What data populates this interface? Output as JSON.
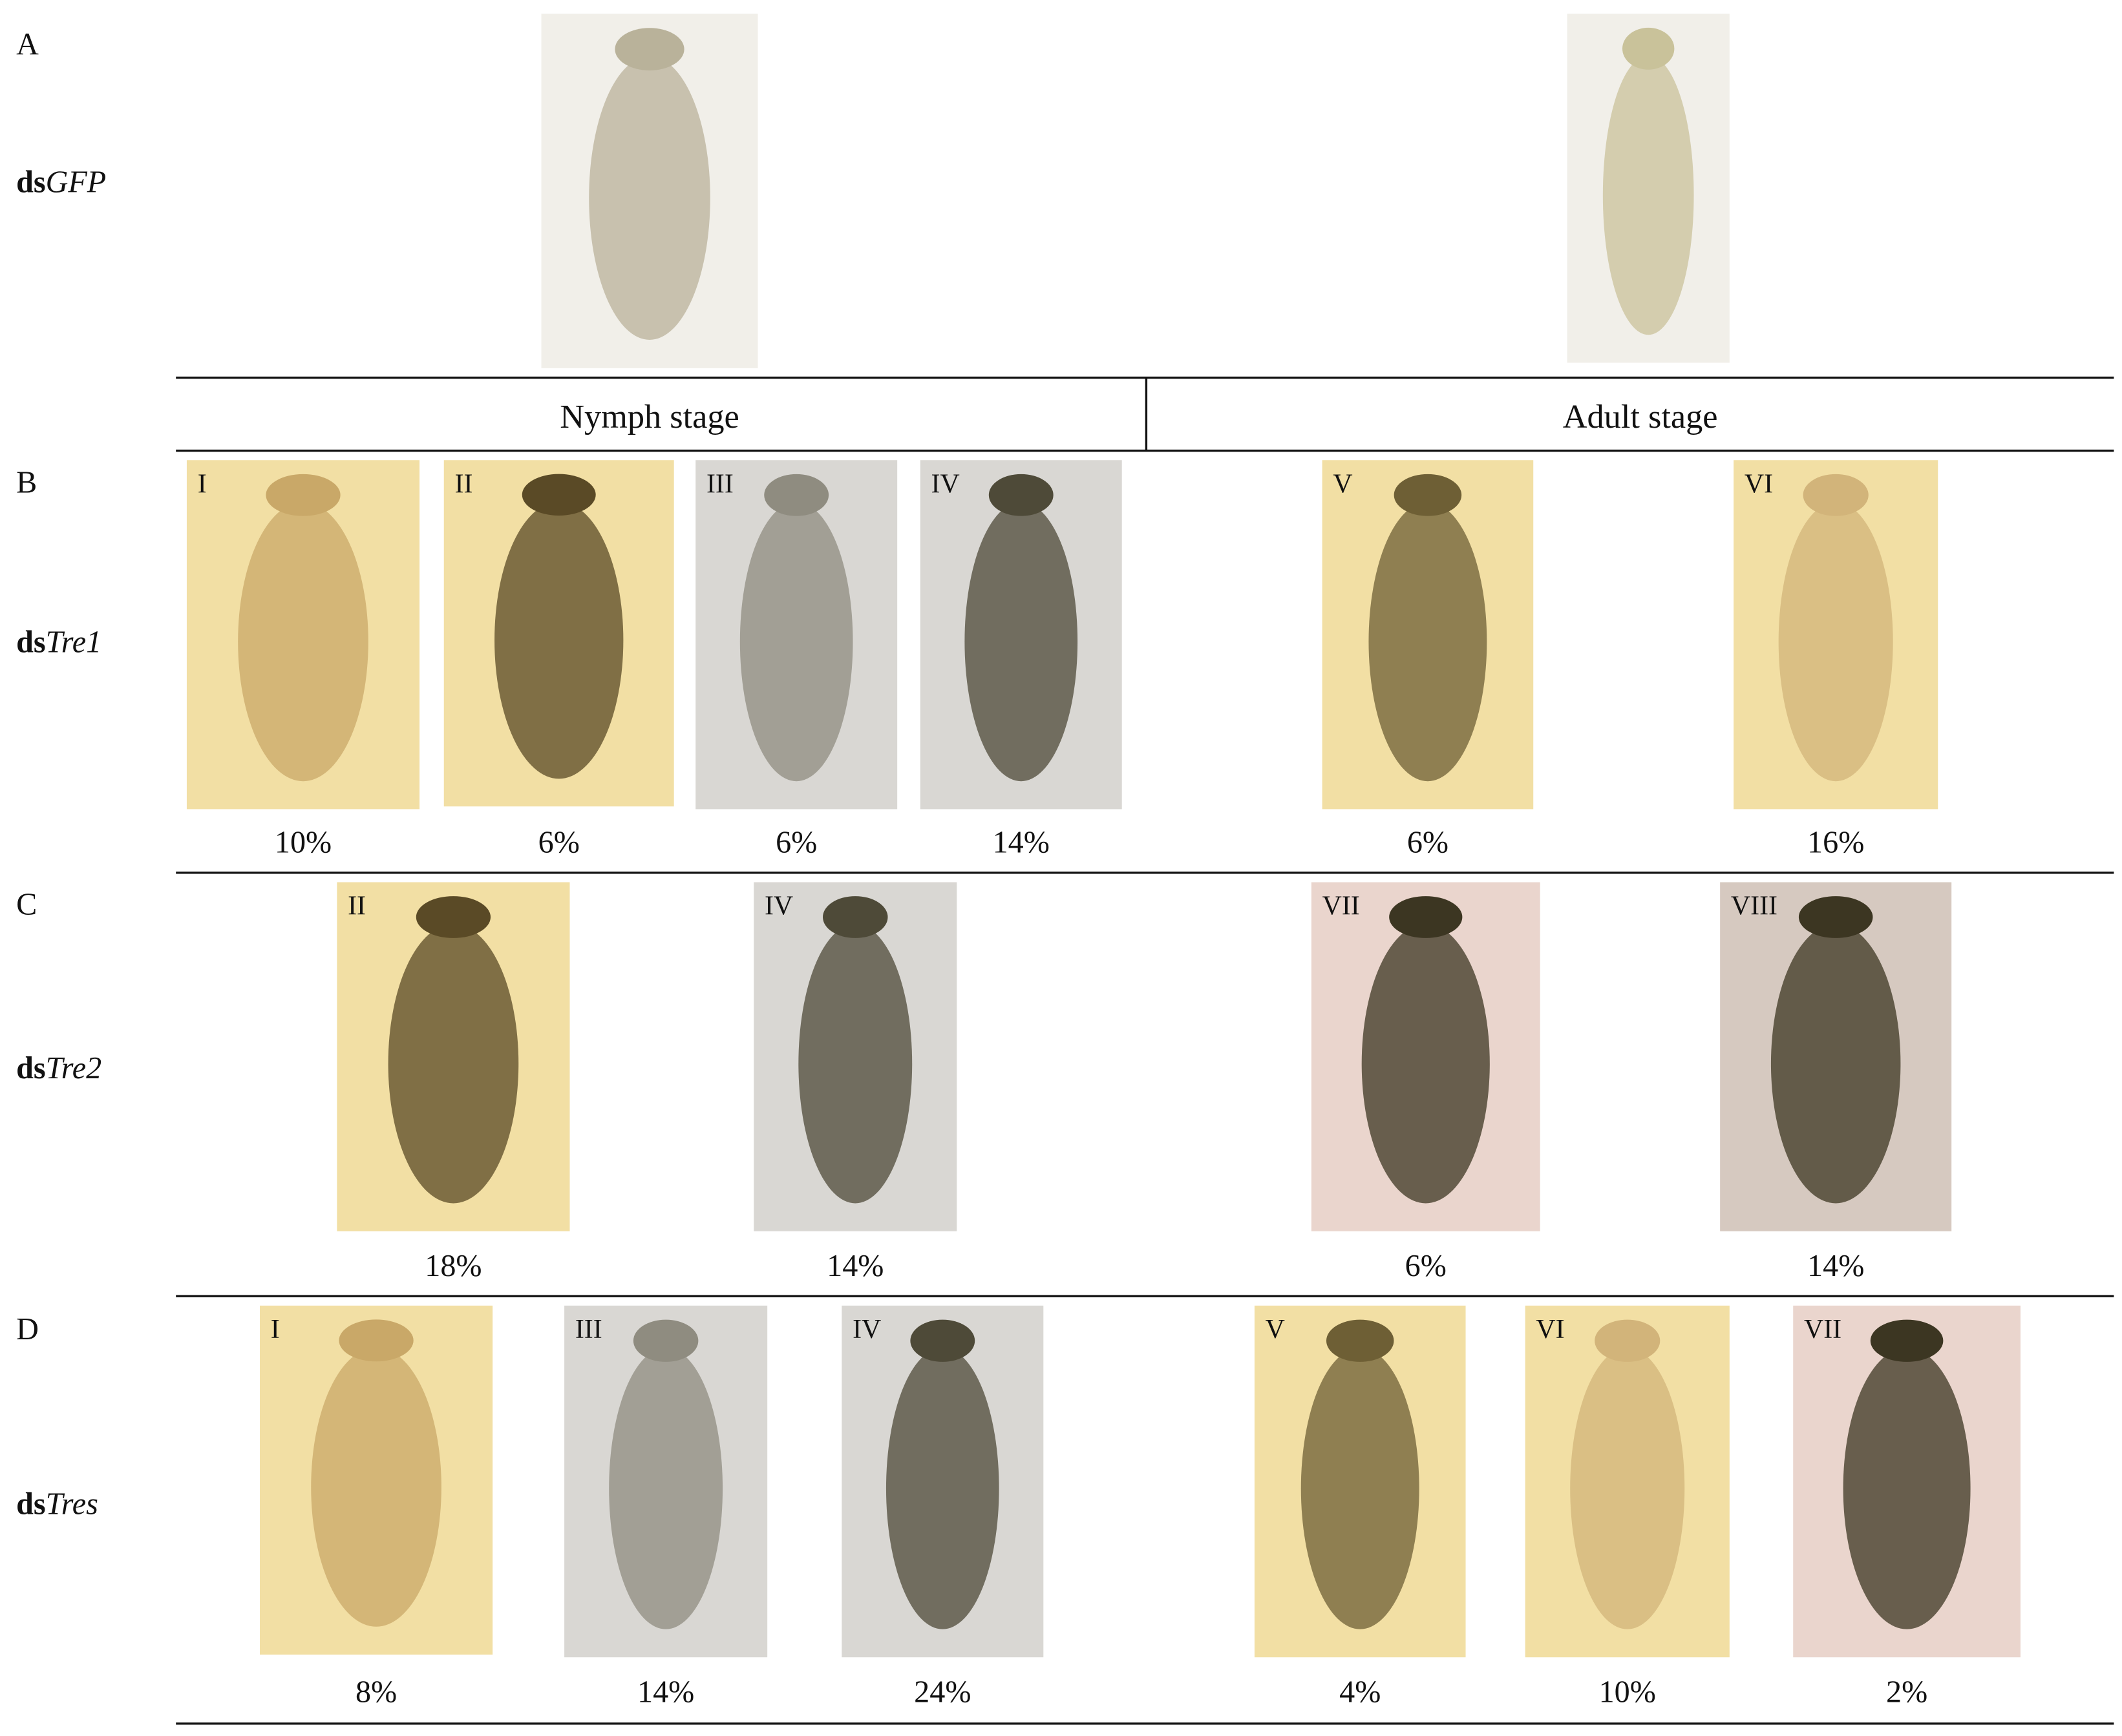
{
  "header": {
    "left": "Nymph stage",
    "right": "Adult stage"
  },
  "panels": [
    {
      "letter": "A",
      "treatment_prefix": "ds",
      "treatment_gene": "GFP",
      "images": [
        {},
        {}
      ]
    },
    {
      "letter": "B",
      "treatment_prefix": "ds",
      "treatment_gene": "Tre1",
      "images": [
        {
          "numeral": "I",
          "percent": "10%"
        },
        {
          "numeral": "II",
          "percent": "6%"
        },
        {
          "numeral": "III",
          "percent": "6%"
        },
        {
          "numeral": "IV",
          "percent": "14%"
        },
        {
          "numeral": "V",
          "percent": "6%"
        },
        {
          "numeral": "VI",
          "percent": "16%"
        }
      ]
    },
    {
      "letter": "C",
      "treatment_prefix": "ds",
      "treatment_gene": "Tre2",
      "images": [
        {
          "numeral": "II",
          "percent": "18%"
        },
        {
          "numeral": "IV",
          "percent": "14%"
        },
        {
          "numeral": "VII",
          "percent": "6%"
        },
        {
          "numeral": "VIII",
          "percent": "14%"
        }
      ]
    },
    {
      "letter": "D",
      "treatment_prefix": "ds",
      "treatment_gene": "Tres",
      "images": [
        {
          "numeral": "I",
          "percent": "8%"
        },
        {
          "numeral": "III",
          "percent": "14%"
        },
        {
          "numeral": "IV",
          "percent": "24%"
        },
        {
          "numeral": "V",
          "percent": "4%"
        },
        {
          "numeral": "VI",
          "percent": "10%"
        },
        {
          "numeral": "VII",
          "percent": "2%"
        }
      ]
    }
  ]
}
